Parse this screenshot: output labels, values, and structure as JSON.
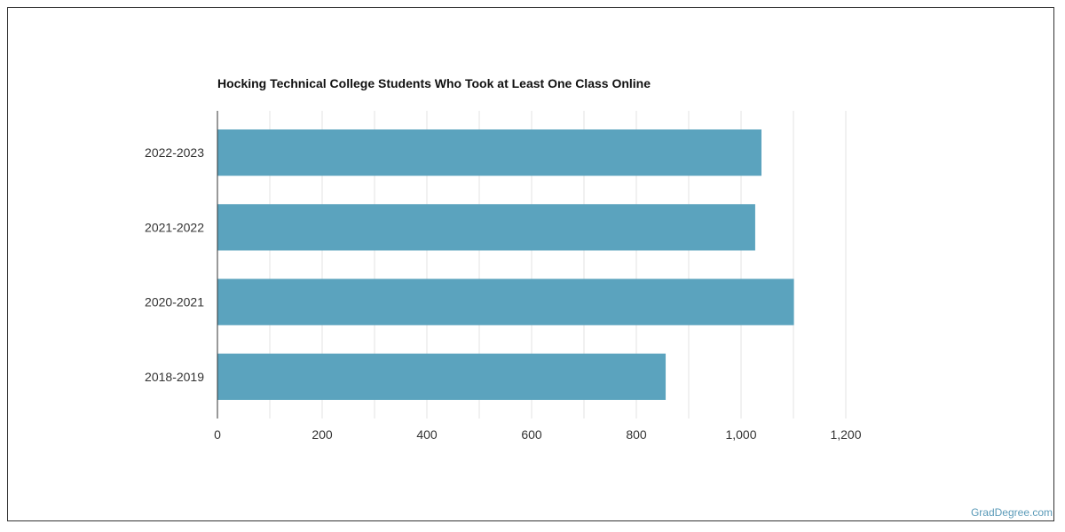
{
  "chart_data": {
    "type": "bar",
    "orientation": "horizontal",
    "title": "Hocking Technical College Students Who Took at Least One Class Online",
    "categories": [
      "2022-2023",
      "2021-2022",
      "2020-2021",
      "2018-2019"
    ],
    "values": [
      1039,
      1027,
      1101,
      856
    ],
    "xlim": [
      0,
      1200
    ],
    "x_ticks": [
      0,
      200,
      400,
      600,
      800,
      1000,
      1200
    ],
    "x_tick_labels": [
      "0",
      "200",
      "400",
      "600",
      "800",
      "1,000",
      "1,200"
    ],
    "bar_color": "#5ba3be",
    "grid": true,
    "legend": "none"
  },
  "watermark": "GradDegree.com"
}
